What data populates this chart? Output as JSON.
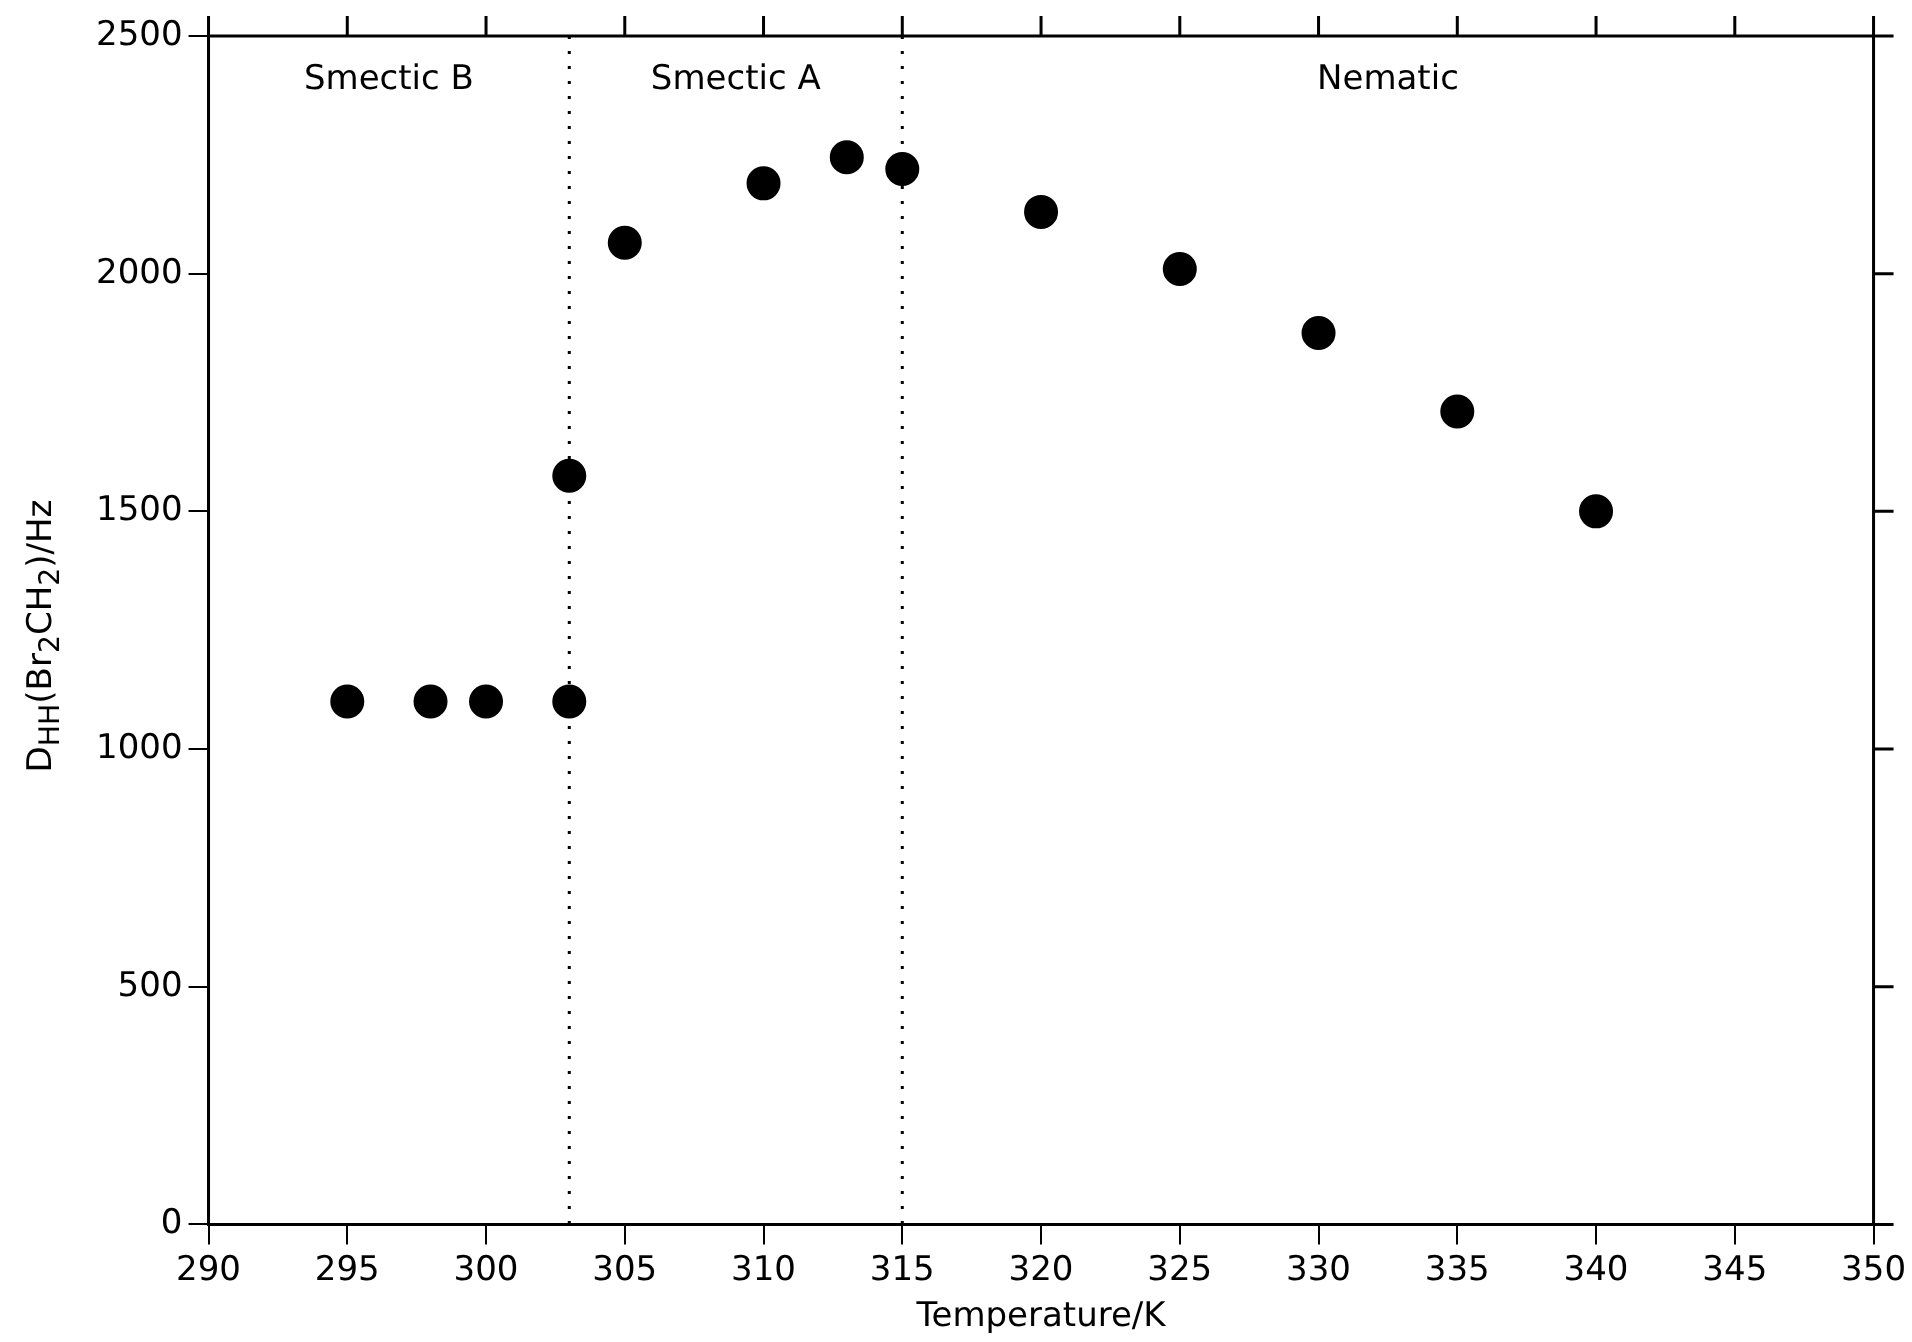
{
  "chart_data": {
    "type": "scatter",
    "xlabel": "Temperature/K",
    "ylabel": "D$_{HH}$(Br$_{2}$CH$_{2}$)/Hz",
    "x": [
      295,
      298,
      300,
      303,
      303,
      305,
      310,
      313,
      315,
      320,
      325,
      330,
      335,
      340
    ],
    "series": [
      {
        "color": "#000000",
        "values": [
          1100,
          1100,
          1100,
          1100,
          1575,
          2065,
          2190,
          2245,
          2220,
          2130,
          2010,
          1875,
          1710,
          1500
        ]
      }
    ],
    "xlim": [
      290,
      350
    ],
    "xticks": [
      290,
      295,
      300,
      305,
      310,
      315,
      320,
      325,
      330,
      335,
      340,
      345,
      350
    ],
    "ylim": [
      0,
      2500
    ],
    "yticks": [
      0,
      500,
      1000,
      1500,
      2000,
      2500
    ],
    "ref_lines": [
      {
        "axis": "x",
        "value": 303,
        "line_style": "dotted",
        "color": "#000000"
      },
      {
        "axis": "x",
        "value": 315,
        "line_style": "dotted",
        "color": "#000000"
      }
    ],
    "annotations": [
      "Smectic B",
      "Smectic A",
      "Nematic"
    ],
    "grid": false,
    "legend": false,
    "marker": "circle"
  }
}
